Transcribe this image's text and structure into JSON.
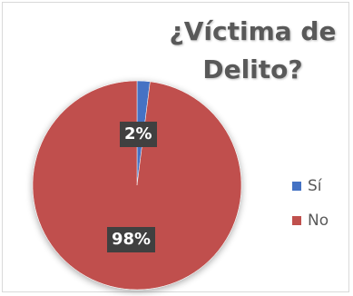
{
  "chart_data": {
    "type": "pie",
    "title_lines": [
      "¿Víctima de",
      "Delito?"
    ],
    "categories": [
      "Sí",
      "No"
    ],
    "values": [
      2,
      98
    ],
    "data_labels": [
      "2%",
      "98%"
    ],
    "colors": [
      "#4472c4",
      "#c0504d"
    ],
    "legend_position": "right"
  }
}
